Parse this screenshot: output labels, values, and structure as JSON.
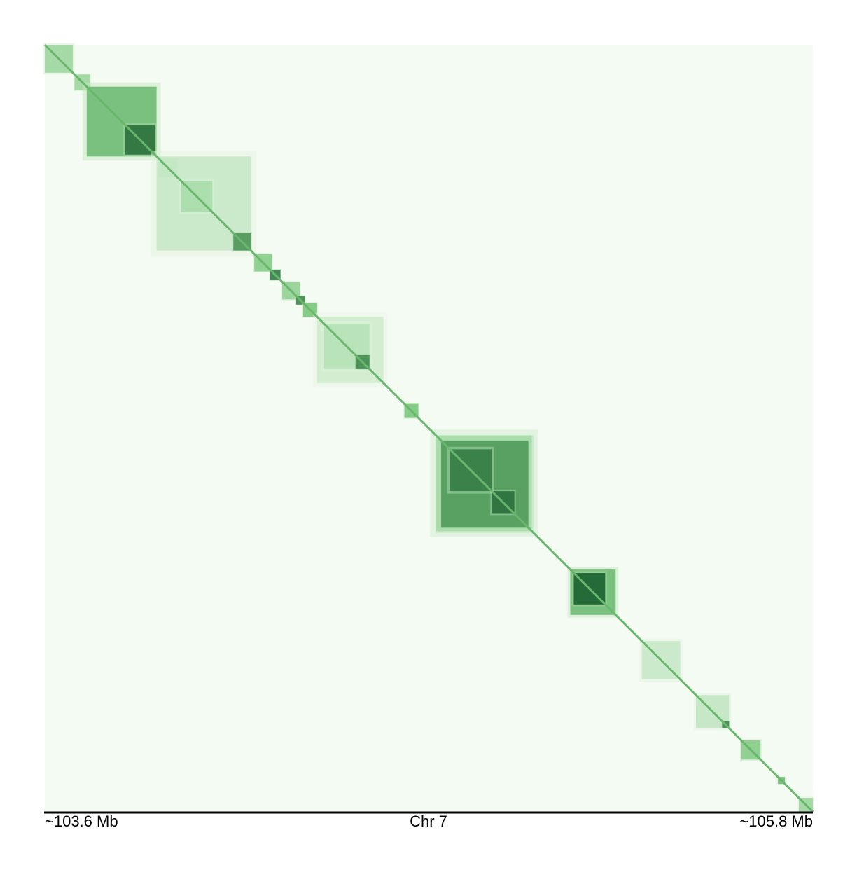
{
  "chart_data": {
    "type": "heatmap",
    "title": "",
    "xlabel": "Chr 7",
    "xlim_label_start": "~103.6 Mb",
    "xlim_label_end": "~105.8 Mb",
    "x_range_mb": [
      103.6,
      105.8
    ],
    "colormap": {
      "low": "#f4fbf2",
      "mid": "#74c476",
      "high": "#00441b"
    },
    "diagonal_intensity": 0.55,
    "domains": [
      {
        "start": 103.6,
        "end": 103.68,
        "intensity": 0.35
      },
      {
        "start": 103.685,
        "end": 103.73,
        "intensity": 0.35
      },
      {
        "start": 103.72,
        "end": 103.92,
        "intensity": 0.55
      },
      {
        "start": 103.83,
        "end": 103.915,
        "intensity": 0.85
      },
      {
        "start": 103.925,
        "end": 103.98,
        "intensity": 0.45
      },
      {
        "start": 103.92,
        "end": 104.19,
        "intensity": 0.18
      },
      {
        "start": 103.99,
        "end": 104.08,
        "intensity": 0.3
      },
      {
        "start": 104.14,
        "end": 104.19,
        "intensity": 0.7
      },
      {
        "start": 104.2,
        "end": 104.25,
        "intensity": 0.45
      },
      {
        "start": 104.245,
        "end": 104.275,
        "intensity": 0.8
      },
      {
        "start": 104.28,
        "end": 104.33,
        "intensity": 0.4
      },
      {
        "start": 104.32,
        "end": 104.345,
        "intensity": 0.75
      },
      {
        "start": 104.34,
        "end": 104.38,
        "intensity": 0.5
      },
      {
        "start": 104.38,
        "end": 104.57,
        "intensity": 0.15
      },
      {
        "start": 104.4,
        "end": 104.53,
        "intensity": 0.25
      },
      {
        "start": 104.49,
        "end": 104.53,
        "intensity": 0.75
      },
      {
        "start": 104.63,
        "end": 104.67,
        "intensity": 0.5
      },
      {
        "start": 104.72,
        "end": 104.995,
        "intensity": 0.38
      },
      {
        "start": 104.735,
        "end": 104.985,
        "intensity": 0.68
      },
      {
        "start": 104.76,
        "end": 104.88,
        "intensity": 0.8
      },
      {
        "start": 104.88,
        "end": 104.945,
        "intensity": 0.85
      },
      {
        "start": 105.105,
        "end": 105.235,
        "intensity": 0.55
      },
      {
        "start": 105.115,
        "end": 105.205,
        "intensity": 0.92
      },
      {
        "start": 105.31,
        "end": 105.42,
        "intensity": 0.18
      },
      {
        "start": 105.465,
        "end": 105.56,
        "intensity": 0.2
      },
      {
        "start": 105.54,
        "end": 105.56,
        "intensity": 0.75
      },
      {
        "start": 105.595,
        "end": 105.65,
        "intensity": 0.45
      },
      {
        "start": 105.7,
        "end": 105.72,
        "intensity": 0.55
      },
      {
        "start": 105.76,
        "end": 105.8,
        "intensity": 0.35
      }
    ]
  }
}
